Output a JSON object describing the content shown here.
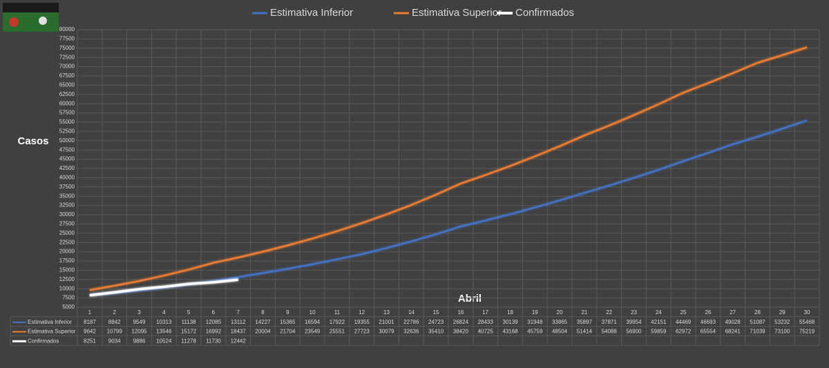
{
  "chart_data": {
    "type": "line",
    "x_label": "Abril",
    "y_label": "Casos",
    "categories": [
      1,
      2,
      3,
      4,
      5,
      6,
      7,
      8,
      9,
      10,
      11,
      12,
      13,
      14,
      15,
      16,
      17,
      18,
      19,
      20,
      21,
      22,
      23,
      24,
      25,
      26,
      27,
      28,
      29,
      30
    ],
    "series": [
      {
        "name": "Estimativa Inferior",
        "color": "#4472c4",
        "values": [
          8187,
          8842,
          9549,
          10313,
          11138,
          12085,
          13112,
          14227,
          15365,
          16594,
          17922,
          19355,
          21001,
          22786,
          24723,
          26824,
          28433,
          30139,
          31948,
          33865,
          35897,
          37871,
          39954,
          42151,
          44469,
          46693,
          49028,
          51087,
          53232,
          55468
        ]
      },
      {
        "name": "Estimativa Superior",
        "color": "#ed7d31",
        "values": [
          9642,
          10799,
          12095,
          13546,
          15172,
          16992,
          18437,
          20004,
          21704,
          23549,
          25551,
          27723,
          30079,
          32636,
          35410,
          38420,
          40725,
          43168,
          45759,
          48504,
          51414,
          54088,
          56900,
          59859,
          62972,
          65554,
          68241,
          71039,
          73100,
          75219
        ]
      },
      {
        "name": "Confirmados",
        "color": "#ffffff",
        "values": [
          8251,
          9034,
          9886,
          10524,
          11278,
          11730,
          12442,
          null,
          null,
          null,
          null,
          null,
          null,
          null,
          null,
          null,
          null,
          null,
          null,
          null,
          null,
          null,
          null,
          null,
          null,
          null,
          null,
          null,
          null,
          null
        ]
      }
    ],
    "ylim": [
      5000,
      80000
    ],
    "yticks": [
      5000,
      7500,
      10000,
      12500,
      15000,
      17500,
      20000,
      22500,
      25000,
      27500,
      30000,
      32500,
      35000,
      37500,
      40000,
      42500,
      45000,
      47500,
      50000,
      52500,
      55000,
      57500,
      60000,
      62500,
      65000,
      67500,
      70000,
      72500,
      75000,
      77500,
      80000
    ],
    "grid": true,
    "legend": "top"
  }
}
